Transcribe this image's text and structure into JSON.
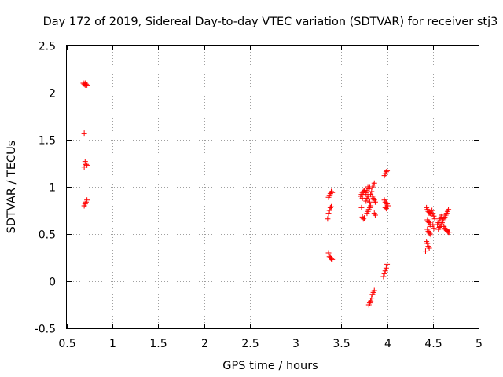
{
  "chart_data": {
    "type": "scatter",
    "title": "Day 172 of 2019, Sidereal Day-to-day VTEC variation (SDTVAR) for receiver stj3",
    "xlabel": "GPS time / hours",
    "ylabel": "SDTVAR / TECUs",
    "xlim": [
      0.5,
      5
    ],
    "ylim": [
      -0.5,
      2.5
    ],
    "xticks": [
      "0.5",
      "1",
      "1.5",
      "2",
      "2.5",
      "3",
      "3.5",
      "4",
      "4.5",
      "5"
    ],
    "yticks": [
      "-0.5",
      "0",
      "0.5",
      "1",
      "1.5",
      "2",
      "2.5"
    ],
    "grid": true,
    "marker": "+",
    "series": [
      {
        "name": "SDTVAR",
        "color": "#ff0000",
        "points": [
          [
            0.68,
            2.1
          ],
          [
            0.69,
            2.09
          ],
          [
            0.7,
            2.1
          ],
          [
            0.71,
            2.09
          ],
          [
            0.72,
            2.08
          ],
          [
            0.7,
            2.08
          ],
          [
            0.69,
            1.57
          ],
          [
            0.7,
            1.27
          ],
          [
            0.71,
            1.24
          ],
          [
            0.72,
            1.23
          ],
          [
            0.69,
            1.21
          ],
          [
            0.69,
            0.8
          ],
          [
            0.7,
            0.82
          ],
          [
            0.71,
            0.84
          ],
          [
            0.72,
            0.86
          ],
          [
            3.35,
            0.66
          ],
          [
            3.36,
            0.72
          ],
          [
            3.37,
            0.75
          ],
          [
            3.38,
            0.78
          ],
          [
            3.39,
            0.79
          ],
          [
            3.36,
            0.89
          ],
          [
            3.37,
            0.91
          ],
          [
            3.38,
            0.93
          ],
          [
            3.39,
            0.95
          ],
          [
            3.4,
            0.94
          ],
          [
            3.36,
            0.3
          ],
          [
            3.37,
            0.26
          ],
          [
            3.38,
            0.25
          ],
          [
            3.39,
            0.24
          ],
          [
            3.4,
            0.23
          ],
          [
            3.71,
            0.9
          ],
          [
            3.72,
            0.92
          ],
          [
            3.73,
            0.94
          ],
          [
            3.74,
            0.95
          ],
          [
            3.75,
            0.96
          ],
          [
            3.73,
            0.88
          ],
          [
            3.72,
            0.78
          ],
          [
            3.73,
            0.68
          ],
          [
            3.74,
            0.66
          ],
          [
            3.75,
            0.67
          ],
          [
            3.76,
            0.92
          ],
          [
            3.77,
            0.94
          ],
          [
            3.78,
            0.96
          ],
          [
            3.79,
            1.0
          ],
          [
            3.8,
            0.98
          ],
          [
            3.81,
            1.0
          ],
          [
            3.77,
            0.85
          ],
          [
            3.78,
            0.88
          ],
          [
            3.79,
            0.9
          ],
          [
            3.8,
            0.87
          ],
          [
            3.81,
            0.84
          ],
          [
            3.78,
            0.72
          ],
          [
            3.79,
            0.74
          ],
          [
            3.8,
            0.76
          ],
          [
            3.81,
            0.78
          ],
          [
            3.82,
            0.8
          ],
          [
            3.82,
            0.92
          ],
          [
            3.83,
            0.95
          ],
          [
            3.84,
            1.0
          ],
          [
            3.85,
            1.02
          ],
          [
            3.86,
            1.04
          ],
          [
            3.84,
            0.9
          ],
          [
            3.85,
            0.88
          ],
          [
            3.86,
            0.86
          ],
          [
            3.87,
            0.84
          ],
          [
            3.86,
            0.72
          ],
          [
            3.87,
            0.7
          ],
          [
            3.8,
            -0.25
          ],
          [
            3.81,
            -0.23
          ],
          [
            3.82,
            -0.21
          ],
          [
            3.83,
            -0.18
          ],
          [
            3.84,
            -0.14
          ],
          [
            3.85,
            -0.12
          ],
          [
            3.86,
            -0.1
          ],
          [
            3.97,
            1.12
          ],
          [
            3.98,
            1.14
          ],
          [
            3.99,
            1.16
          ],
          [
            4.0,
            1.17
          ],
          [
            3.97,
            0.86
          ],
          [
            3.98,
            0.84
          ],
          [
            3.99,
            0.83
          ],
          [
            4.0,
            0.82
          ],
          [
            4.01,
            0.8
          ],
          [
            3.98,
            0.78
          ],
          [
            3.99,
            0.77
          ],
          [
            3.96,
            0.05
          ],
          [
            3.97,
            0.08
          ],
          [
            3.98,
            0.11
          ],
          [
            3.99,
            0.14
          ],
          [
            4.0,
            0.18
          ],
          [
            4.43,
            0.78
          ],
          [
            4.44,
            0.76
          ],
          [
            4.45,
            0.74
          ],
          [
            4.46,
            0.73
          ],
          [
            4.47,
            0.72
          ],
          [
            4.48,
            0.7
          ],
          [
            4.44,
            0.65
          ],
          [
            4.45,
            0.63
          ],
          [
            4.46,
            0.62
          ],
          [
            4.47,
            0.6
          ],
          [
            4.48,
            0.58
          ],
          [
            4.44,
            0.55
          ],
          [
            4.45,
            0.53
          ],
          [
            4.46,
            0.51
          ],
          [
            4.47,
            0.5
          ],
          [
            4.48,
            0.48
          ],
          [
            4.43,
            0.42
          ],
          [
            4.44,
            0.4
          ],
          [
            4.45,
            0.37
          ],
          [
            4.46,
            0.35
          ],
          [
            4.42,
            0.32
          ],
          [
            4.49,
            0.75
          ],
          [
            4.5,
            0.72
          ],
          [
            4.51,
            0.69
          ],
          [
            4.52,
            0.66
          ],
          [
            4.5,
            0.6
          ],
          [
            4.51,
            0.56
          ],
          [
            4.55,
            0.6
          ],
          [
            4.56,
            0.62
          ],
          [
            4.57,
            0.64
          ],
          [
            4.58,
            0.66
          ],
          [
            4.59,
            0.68
          ],
          [
            4.6,
            0.7
          ],
          [
            4.56,
            0.55
          ],
          [
            4.57,
            0.57
          ],
          [
            4.58,
            0.58
          ],
          [
            4.59,
            0.6
          ],
          [
            4.6,
            0.62
          ],
          [
            4.61,
            0.64
          ],
          [
            4.62,
            0.66
          ],
          [
            4.63,
            0.68
          ],
          [
            4.64,
            0.7
          ],
          [
            4.65,
            0.72
          ],
          [
            4.66,
            0.74
          ],
          [
            4.67,
            0.76
          ],
          [
            4.62,
            0.58
          ],
          [
            4.63,
            0.56
          ],
          [
            4.64,
            0.55
          ],
          [
            4.65,
            0.54
          ],
          [
            4.66,
            0.53
          ],
          [
            4.67,
            0.52
          ],
          [
            4.68,
            0.52
          ]
        ]
      }
    ]
  }
}
